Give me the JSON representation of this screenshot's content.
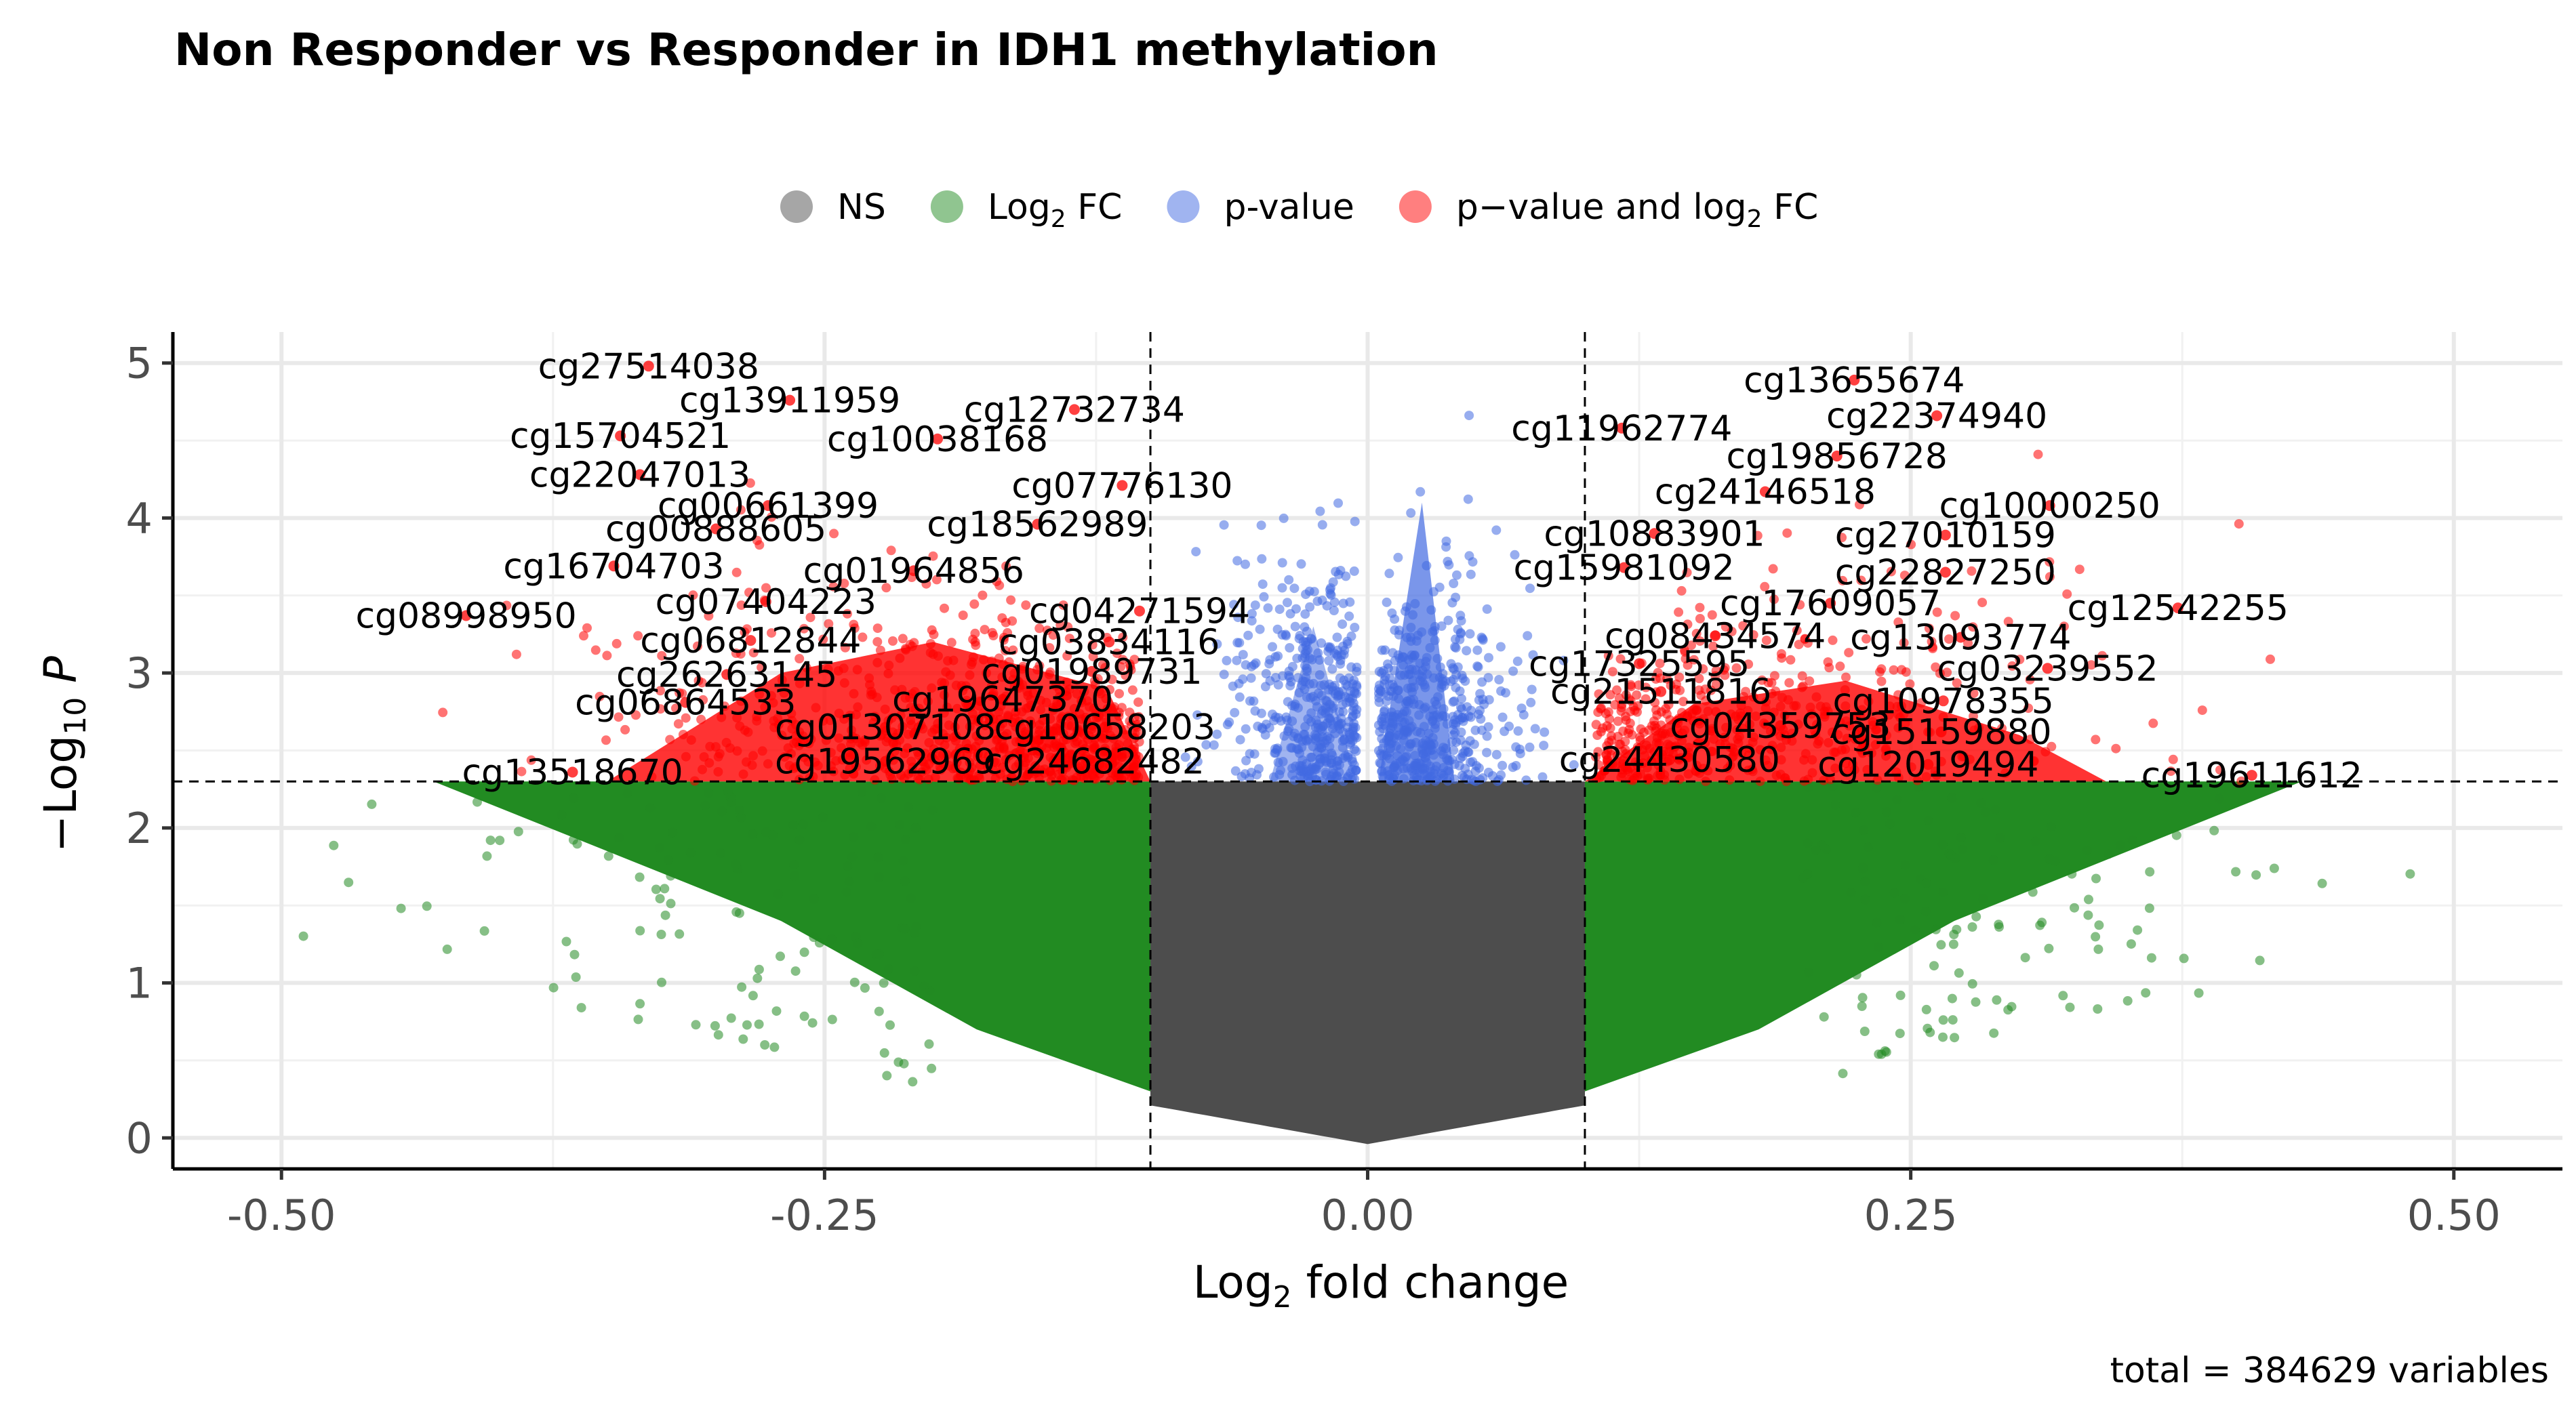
{
  "chart_data": {
    "type": "scatter",
    "title": "Non Responder vs Responder in IDH1 methylation",
    "xlabel": {
      "base": "Log",
      "sub": "2",
      "rest": " fold change"
    },
    "ylabel": {
      "pre": "−Log",
      "sub": "10",
      "post": " P"
    },
    "caption": "total = 384629 variables",
    "xlim": [
      -0.55,
      0.55
    ],
    "ylim": [
      -0.2,
      5.2
    ],
    "x_ticks": [
      -0.5,
      -0.25,
      0,
      0.25,
      0.5
    ],
    "x_tick_labels": [
      "-0.50",
      "-0.25",
      "0.00",
      "0.25",
      "0.50"
    ],
    "y_ticks": [
      0,
      1,
      2,
      3,
      4,
      5
    ],
    "y_tick_labels": [
      "0",
      "1",
      "2",
      "3",
      "4",
      "5"
    ],
    "grid": true,
    "legend_position": "top",
    "thresholds": {
      "log2fc": 0.1,
      "neg_log10_p": 2.3
    },
    "legend": [
      {
        "key": "ns",
        "label": "NS",
        "color": "#4d4d4d"
      },
      {
        "key": "fc",
        "label_base": "Log",
        "label_sub": "2",
        "label_rest": " FC",
        "color": "#228b22"
      },
      {
        "key": "p",
        "label": "p-value",
        "color": "#4169e1"
      },
      {
        "key": "both",
        "label_pre": "p−value and log",
        "label_sub": "2",
        "label_rest": " FC",
        "color": "#ff0000"
      }
    ],
    "labeled_points": [
      {
        "name": "cg27514038",
        "x": -0.331,
        "y": 4.98
      },
      {
        "name": "cg13911959",
        "x": -0.266,
        "y": 4.76
      },
      {
        "name": "cg12732734",
        "x": -0.135,
        "y": 4.7
      },
      {
        "name": "cg15704521",
        "x": -0.344,
        "y": 4.53
      },
      {
        "name": "cg10038168",
        "x": -0.198,
        "y": 4.51
      },
      {
        "name": "cg22047013",
        "x": -0.335,
        "y": 4.28
      },
      {
        "name": "cg07776130",
        "x": -0.113,
        "y": 4.21
      },
      {
        "name": "cg00661399",
        "x": -0.276,
        "y": 4.08
      },
      {
        "name": "cg18562989",
        "x": -0.152,
        "y": 3.96
      },
      {
        "name": "cg00888605",
        "x": -0.3,
        "y": 3.93
      },
      {
        "name": "cg16704703",
        "x": -0.347,
        "y": 3.69
      },
      {
        "name": "cg01964856",
        "x": -0.209,
        "y": 3.66
      },
      {
        "name": "cg08998950",
        "x": -0.415,
        "y": 3.37
      },
      {
        "name": "cg07404223",
        "x": -0.277,
        "y": 3.46
      },
      {
        "name": "cg04271594",
        "x": -0.105,
        "y": 3.4
      },
      {
        "name": "cg06812844",
        "x": -0.284,
        "y": 3.21
      },
      {
        "name": "cg03834116",
        "x": -0.119,
        "y": 3.2
      },
      {
        "name": "cg26263145",
        "x": -0.295,
        "y": 2.99
      },
      {
        "name": "cg01989731",
        "x": -0.127,
        "y": 3.01
      },
      {
        "name": "cg06864533",
        "x": -0.314,
        "y": 2.81
      },
      {
        "name": "cg19647370",
        "x": -0.168,
        "y": 2.83
      },
      {
        "name": "cg01307108",
        "x": -0.222,
        "y": 2.65
      },
      {
        "name": "cg10658203",
        "x": -0.121,
        "y": 2.65
      },
      {
        "name": "cg19562969",
        "x": -0.222,
        "y": 2.43
      },
      {
        "name": "cg24682482",
        "x": -0.126,
        "y": 2.43
      },
      {
        "name": "cg13518670",
        "x": -0.366,
        "y": 2.36
      },
      {
        "name": "cg13655674",
        "x": 0.224,
        "y": 4.89
      },
      {
        "name": "cg22374940",
        "x": 0.262,
        "y": 4.66
      },
      {
        "name": "cg11962774",
        "x": 0.117,
        "y": 4.58
      },
      {
        "name": "cg19856728",
        "x": 0.216,
        "y": 4.4
      },
      {
        "name": "cg24146518",
        "x": 0.183,
        "y": 4.17
      },
      {
        "name": "cg10000250",
        "x": 0.314,
        "y": 4.08
      },
      {
        "name": "cg10883901",
        "x": 0.132,
        "y": 3.9
      },
      {
        "name": "cg27010159",
        "x": 0.266,
        "y": 3.89
      },
      {
        "name": "cg15981092",
        "x": 0.118,
        "y": 3.68
      },
      {
        "name": "cg22827250",
        "x": 0.266,
        "y": 3.65
      },
      {
        "name": "cg17609057",
        "x": 0.213,
        "y": 3.45
      },
      {
        "name": "cg12542255",
        "x": 0.373,
        "y": 3.42
      },
      {
        "name": "cg08434574",
        "x": 0.16,
        "y": 3.24
      },
      {
        "name": "cg13093774",
        "x": 0.273,
        "y": 3.23
      },
      {
        "name": "cg17325595",
        "x": 0.125,
        "y": 3.06
      },
      {
        "name": "cg03239552",
        "x": 0.313,
        "y": 3.03
      },
      {
        "name": "cg21511816",
        "x": 0.135,
        "y": 2.88
      },
      {
        "name": "cg10978355",
        "x": 0.265,
        "y": 2.82
      },
      {
        "name": "cg04359753",
        "x": 0.19,
        "y": 2.66
      },
      {
        "name": "cg15159880",
        "x": 0.264,
        "y": 2.62
      },
      {
        "name": "cg24430580",
        "x": 0.139,
        "y": 2.44
      },
      {
        "name": "cg12019494",
        "x": 0.258,
        "y": 2.41
      },
      {
        "name": "cg19611612",
        "x": 0.407,
        "y": 2.34
      }
    ]
  }
}
